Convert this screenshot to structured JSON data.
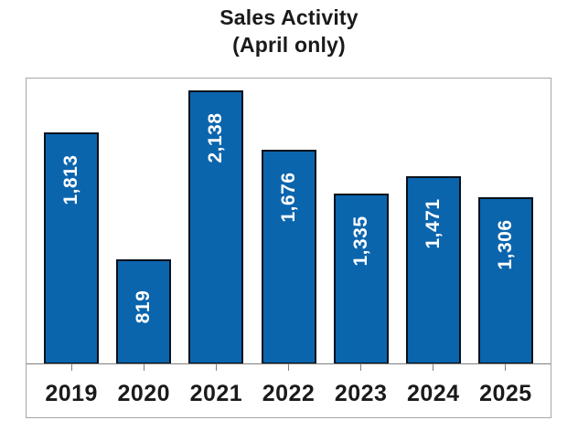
{
  "chart_data": {
    "type": "bar",
    "title": "Sales Activity",
    "subtitle": "(April only)",
    "categories": [
      "2019",
      "2020",
      "2021",
      "2022",
      "2023",
      "2024",
      "2025"
    ],
    "values": [
      1813,
      819,
      2138,
      1676,
      1335,
      1471,
      1306
    ],
    "value_labels": [
      "1,813",
      "819",
      "2,138",
      "1,676",
      "1,335",
      "1,471",
      "1,306"
    ],
    "xlabel": "",
    "ylabel": "",
    "ylim": [
      0,
      2230
    ],
    "grid": false,
    "legend": "none",
    "orientation": "vertical",
    "value_label_rotation": -90,
    "colors": {
      "bar_fill": "#0b65ad",
      "bar_border": "#05111c",
      "value_label": "#ffffff",
      "axis_line": "#7f7f7f",
      "frame_border": "#a6a6a6",
      "title_text": "#1a1a1a",
      "axis_label_text": "#1a1a1a"
    }
  }
}
